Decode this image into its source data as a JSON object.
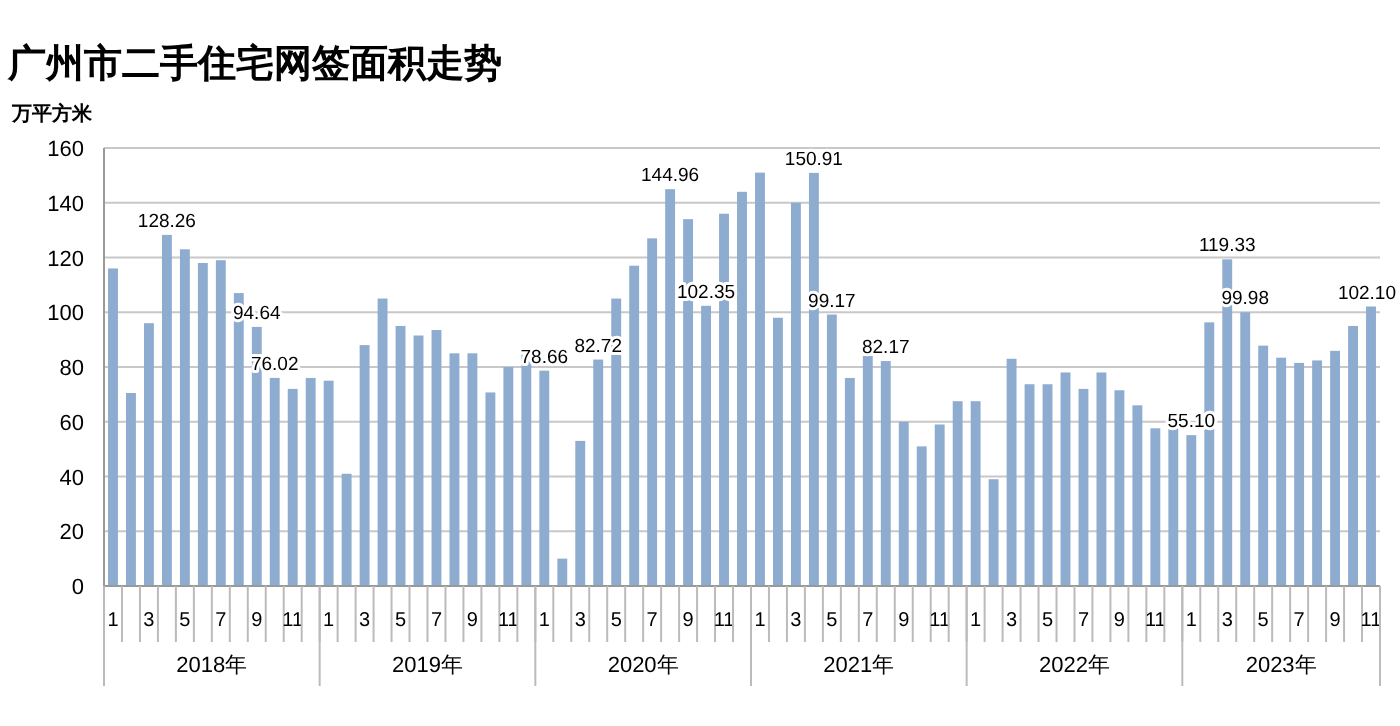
{
  "chart_data": {
    "type": "bar",
    "title": "广州市二手住宅网签面积走势",
    "ylabel": "万平方米",
    "categories": [
      "1",
      null,
      "3",
      null,
      "5",
      null,
      "7",
      null,
      "9",
      null,
      "11",
      null,
      "1",
      null,
      "3",
      null,
      "5",
      null,
      "7",
      null,
      "9",
      null,
      "11",
      null,
      "1",
      null,
      "3",
      null,
      "5",
      null,
      "7",
      null,
      "9",
      null,
      "11",
      null,
      "1",
      null,
      "3",
      null,
      "5",
      null,
      "7",
      null,
      "9",
      null,
      "11",
      null,
      "1",
      null,
      "3",
      null,
      "5",
      null,
      "7",
      null,
      "9",
      null,
      "11",
      null,
      "1",
      null,
      "3",
      null,
      "5",
      null,
      "7",
      null,
      "9",
      null,
      "11"
    ],
    "values": [
      116,
      70.5,
      96,
      128.26,
      123,
      118,
      119,
      107,
      94.64,
      76.02,
      72,
      76,
      75,
      41,
      88,
      105,
      95,
      91.5,
      93.5,
      85,
      85,
      70.7,
      80,
      84.4,
      78.66,
      10,
      53,
      82.72,
      105,
      117,
      127,
      144.96,
      134,
      102.35,
      136,
      144,
      151,
      98,
      140,
      150.91,
      99.17,
      76,
      84,
      82.17,
      60,
      51,
      59,
      67.5,
      67.5,
      39,
      83,
      73.7,
      73.7,
      78,
      72,
      78,
      71.5,
      66,
      57.6,
      59,
      55.1,
      96.3,
      119.33,
      99.98,
      87.8,
      83.4,
      81.5,
      82.4,
      85.9,
      95,
      102.1
    ],
    "value_labels": [
      null,
      null,
      null,
      "128.26",
      null,
      null,
      null,
      null,
      "94.64",
      "76.02",
      null,
      null,
      null,
      null,
      null,
      null,
      null,
      null,
      null,
      null,
      null,
      null,
      null,
      null,
      "78.66",
      null,
      null,
      "82.72",
      null,
      null,
      null,
      "144.96",
      null,
      "102.35",
      null,
      null,
      null,
      null,
      null,
      "150.91",
      "99.17",
      null,
      null,
      "82.17",
      null,
      null,
      null,
      null,
      null,
      null,
      null,
      null,
      null,
      null,
      null,
      null,
      null,
      null,
      null,
      null,
      "55.10",
      null,
      "119.33",
      "99.98",
      null,
      null,
      null,
      null,
      null,
      null,
      "102.10"
    ],
    "color": "#8eabd0",
    "annotations": [
      "2018年",
      "2019年",
      "2020年",
      "2021年",
      "2022年",
      "2023年"
    ],
    "ylim": [
      0,
      160
    ],
    "yticks": [
      0,
      20,
      40,
      60,
      80,
      100,
      120,
      140,
      160
    ],
    "grid": "y"
  }
}
